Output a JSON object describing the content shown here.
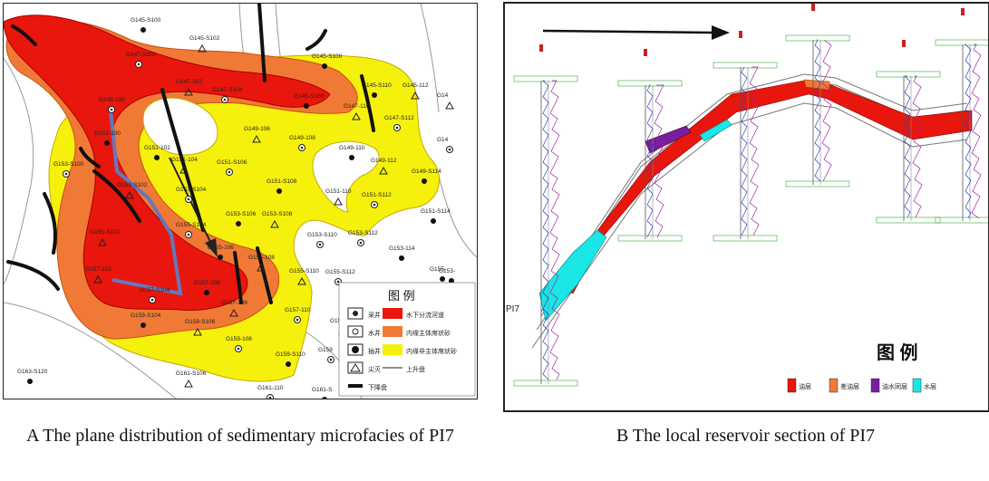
{
  "panel_a": {
    "caption": "A The plane distribution of sedimentary microfacies of PI7",
    "well_labels": [
      "G145-S100",
      "G145-S102",
      "G147-S100",
      "G145-S100",
      "G147-102",
      "G147-S104",
      "G145-S110",
      "G145-112",
      "G149-100",
      "G145-S100",
      "G147-110",
      "G147-S112",
      "G151-100",
      "G149-106",
      "G149-108",
      "G149-110",
      "G149-112",
      "G153-S100",
      "G151-102",
      "G151-104",
      "G151-S106",
      "G151-S108",
      "G151-110",
      "G151-S112",
      "G149-S114",
      "G153-S102",
      "G153-S104",
      "G153-S106",
      "G153-S108",
      "G153-S110",
      "G151-S114",
      "G155-S102",
      "G155-S104",
      "G155-106",
      "G155-108",
      "G153-S112",
      "G153-114",
      "G157-102",
      "G157-S104",
      "G157-106",
      "G155-S110",
      "G155-S112",
      "G155-",
      "G157-108",
      "G157-110",
      "G159-S104",
      "G159-S106",
      "G159-108",
      "G159-S110",
      "G157-S",
      "G159",
      "G163-S120",
      "G161-S106",
      "G161-110",
      "G161-S",
      "G14",
      "G14",
      "G153-"
    ],
    "legend": {
      "title": "图 例",
      "items": [
        "水下分流河道",
        "内缘主体席状砂",
        "内缘非主体席状砂",
        "上升盘",
        "下降盘"
      ],
      "well_types": [
        "采井",
        "水井",
        "抽井",
        "尖灭"
      ]
    },
    "colors": {
      "red": "#e8160c",
      "orange": "#f07a35",
      "yellow": "#f5f10c",
      "gray": "#f0f0f0",
      "blue": "#6677bb"
    }
  },
  "panel_b": {
    "caption": "B The local reservoir section of PI7",
    "side_label": "PI7",
    "legend": {
      "title": "图 例",
      "items": [
        {
          "label": "油层",
          "color": "#e8160c"
        },
        {
          "label": "差油层",
          "color": "#f07a35"
        },
        {
          "label": "油水同层",
          "color": "#7a1ea0"
        },
        {
          "label": "水层",
          "color": "#1ae6e6"
        }
      ]
    }
  }
}
